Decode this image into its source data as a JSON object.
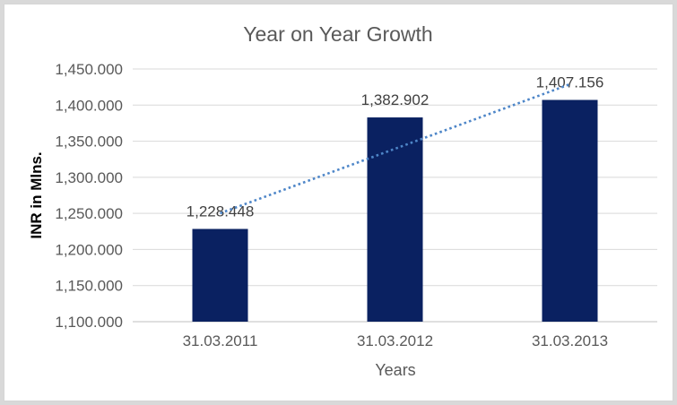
{
  "chart_data": {
    "type": "bar",
    "title": "Year on Year Growth",
    "xlabel": "Years",
    "ylabel": "INR in Mlns.",
    "categories": [
      "31.03.2011",
      "31.03.2012",
      "31.03.2013"
    ],
    "values": [
      1228.448,
      1382.902,
      1407.156
    ],
    "data_labels": [
      "1,228.448",
      "1,382.902",
      "1,407.156"
    ],
    "ylim": [
      1100,
      1450
    ],
    "y_tick_step": 50,
    "y_tick_labels": [
      "1,100.000",
      "1,150.000",
      "1,200.000",
      "1,250.000",
      "1,300.000",
      "1,350.000",
      "1,400.000",
      "1,450.000"
    ],
    "grid": true,
    "legend": false,
    "trendline": {
      "type": "linear",
      "style": "dotted"
    },
    "colors": {
      "bar": "#0A2161",
      "trendline": "#4E86C8",
      "title_text": "#595959",
      "axis_text": "#595959",
      "data_label_text": "#404040",
      "gridline": "#D9D9D9",
      "axis_line": "#BFBFBF",
      "frame": "#D9D9D9"
    }
  }
}
